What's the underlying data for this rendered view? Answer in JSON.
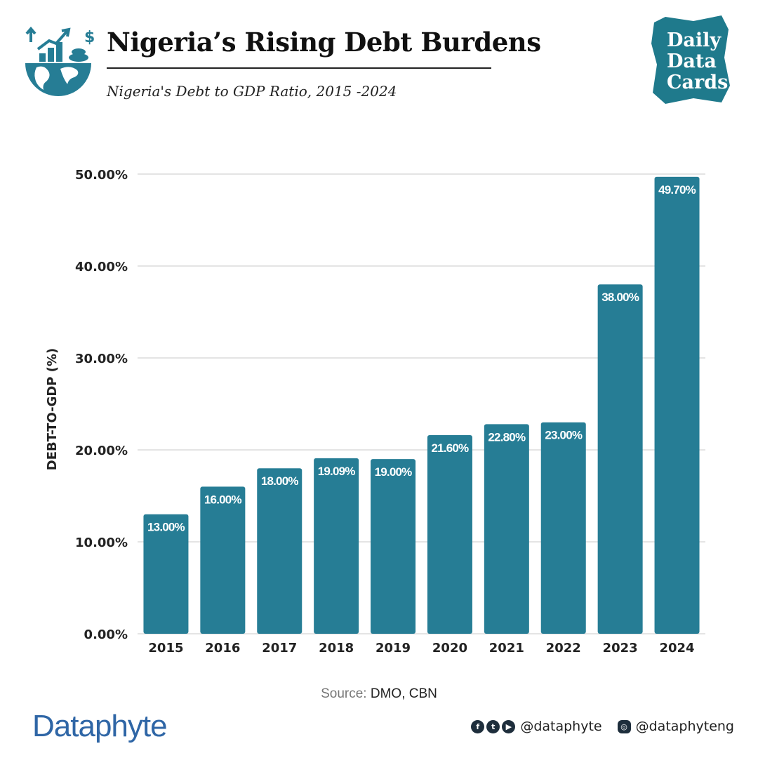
{
  "header": {
    "title": "Nigeria’s Rising Debt Burdens",
    "subtitle": "Nigeria's Debt to GDP Ratio, 2015 -2024",
    "icon": "globe-growth-icon"
  },
  "brand_badge": {
    "text": "Daily Data Cards",
    "color": "#1f7a8c"
  },
  "chart_data": {
    "type": "bar",
    "title": "",
    "xlabel": "",
    "ylabel": "DEBT-TO-GDP (%)",
    "ylim": [
      0,
      50
    ],
    "yticks": [
      "0.00%",
      "10.00%",
      "20.00%",
      "30.00%",
      "40.00%",
      "50.00%"
    ],
    "ytick_values": [
      0,
      10,
      20,
      30,
      40,
      50
    ],
    "categories": [
      "2015",
      "2016",
      "2017",
      "2018",
      "2019",
      "2020",
      "2021",
      "2022",
      "2023",
      "2024"
    ],
    "values": [
      13.0,
      16.0,
      18.0,
      19.09,
      19.0,
      21.6,
      22.8,
      23.0,
      38.0,
      49.7
    ],
    "data_labels": [
      "13.00%",
      "16.00%",
      "18.00%",
      "19.09%",
      "19.00%",
      "21.60%",
      "22.80%",
      "23.00%",
      "38.00%",
      "49.70%"
    ],
    "grid": true,
    "bar_color": "#267d95",
    "label_color": "#ffffff"
  },
  "source": {
    "label": "Source:",
    "text": "DMO, CBN"
  },
  "footer": {
    "logo": "Dataphyte",
    "logo_color": "#2f66a6",
    "social_icons": [
      "facebook-icon",
      "twitter-icon",
      "youtube-icon"
    ],
    "handle_1": "@dataphyte",
    "handle_2": "@dataphyteng",
    "instagram_icon": "instagram-icon"
  }
}
